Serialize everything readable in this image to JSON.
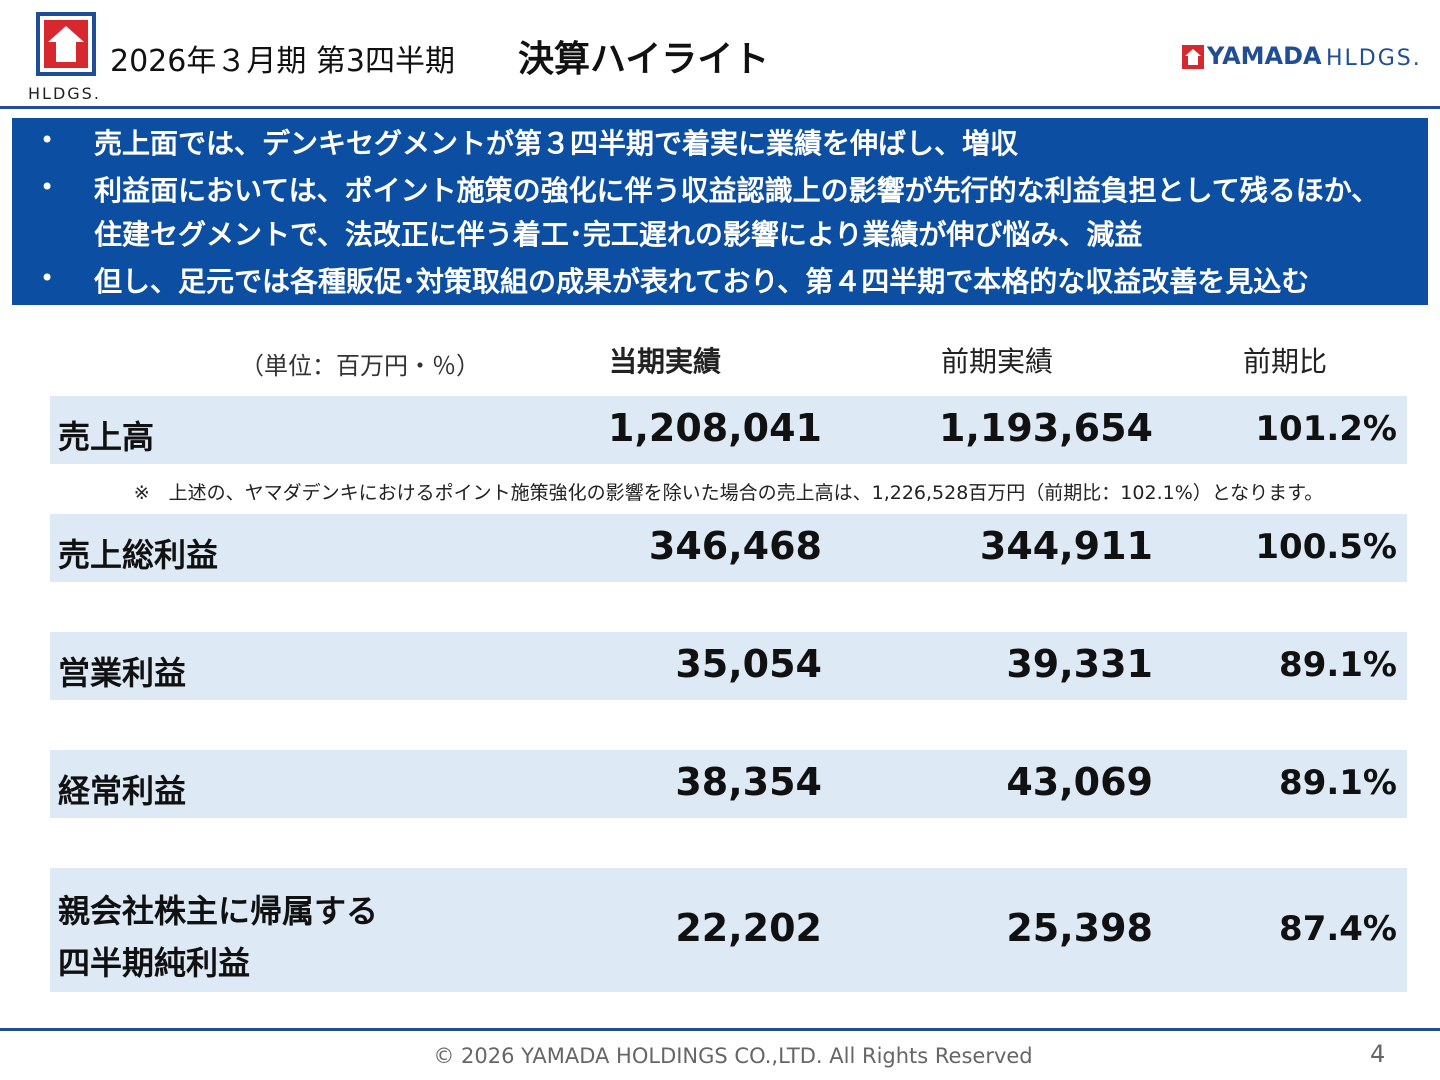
{
  "header": {
    "period": "2026年３月期 第3四半期",
    "title": "決算ハイライト",
    "logo_left": "HLDGS.",
    "logo_right_brand": "YAMADA",
    "logo_right_suffix": "HLDGS."
  },
  "bullets": [
    {
      "lines": [
        "売上面では、デンキセグメントが第３四半期で着実に業績を伸ばし、増収"
      ]
    },
    {
      "lines": [
        "利益面においては、ポイント施策の強化に伴う収益認識上の影響が先行的な利益負担として残るほか、",
        "住建セグメントで、法改正に伴う着工･完工遅れの影響により業績が伸び悩み、減益"
      ]
    },
    {
      "lines": [
        "但し、足元では各種販促･対策取組の成果が表れており、第４四半期で本格的な収益改善を見込む"
      ]
    }
  ],
  "table": {
    "unit": "（単位：百万円・％）",
    "columns": [
      "当期実績",
      "前期実績",
      "前期比"
    ],
    "rows": [
      {
        "label": [
          "売上高"
        ],
        "cells": [
          "1,208,041",
          "1,193,654",
          "101.2%"
        ]
      },
      {
        "label": [
          "売上総利益"
        ],
        "cells": [
          "346,468",
          "344,911",
          "100.5%"
        ]
      },
      {
        "label": [
          "営業利益"
        ],
        "cells": [
          "35,054",
          "39,331",
          "89.1%"
        ]
      },
      {
        "label": [
          "経常利益"
        ],
        "cells": [
          "38,354",
          "43,069",
          "89.1%"
        ]
      },
      {
        "label": [
          "親会社株主に帰属する",
          "四半期純利益"
        ],
        "cells": [
          "22,202",
          "25,398",
          "87.4%"
        ]
      }
    ],
    "note": "※　上述の、ヤマダデンキにおけるポイント施策強化の影響を除いた場合の売上高は、1,226,528百万円（前期比：102.1%）となります。"
  },
  "footer": {
    "copyright": "© 2026 YAMADA HOLDINGS CO.,LTD. All Rights Reserved",
    "page": "4"
  }
}
